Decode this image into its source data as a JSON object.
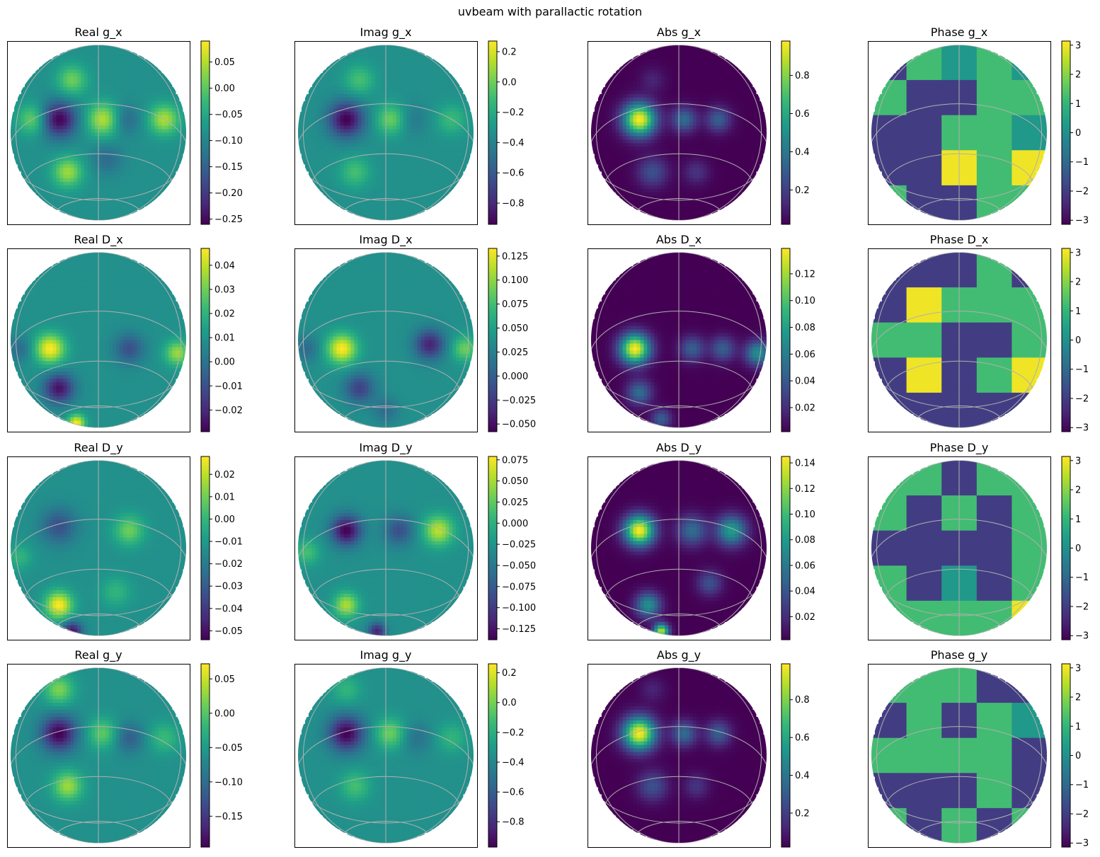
{
  "suptitle": "uvbeam with parallactic rotation",
  "colormap": "viridis",
  "colormap_stops": [
    "#440154",
    "#482878",
    "#3e4989",
    "#31688e",
    "#26828e",
    "#1f9e89",
    "#35b779",
    "#6ece58",
    "#b5de2b",
    "#fde725"
  ],
  "grid_color": "#b0b0b0",
  "chart_data": [
    {
      "type": "heatmap",
      "title": "Real g_x",
      "colorbar": {
        "range": [
          -0.26,
          0.09
        ],
        "ticks": [
          "0.05",
          "0.00",
          "−0.05",
          "−0.10",
          "−0.15",
          "−0.20",
          "−0.25"
        ],
        "tick_values": [
          0.05,
          0,
          -0.05,
          -0.1,
          -0.15,
          -0.2,
          -0.25
        ]
      }
    },
    {
      "type": "heatmap",
      "title": "Imag g_x",
      "colorbar": {
        "range": [
          -0.94,
          0.27
        ],
        "ticks": [
          "0.2",
          "0.0",
          "−0.2",
          "−0.4",
          "−0.6",
          "−0.8"
        ],
        "tick_values": [
          0.2,
          0,
          -0.2,
          -0.4,
          -0.6,
          -0.8
        ]
      }
    },
    {
      "type": "heatmap",
      "title": "Abs g_x",
      "colorbar": {
        "range": [
          0.02,
          0.98
        ],
        "ticks": [
          "0.8",
          "0.6",
          "0.4",
          "0.2"
        ],
        "tick_values": [
          0.8,
          0.6,
          0.4,
          0.2
        ]
      }
    },
    {
      "type": "heatmap",
      "title": "Phase g_x",
      "colorbar": {
        "range": [
          -3.14,
          3.14
        ],
        "ticks": [
          "3",
          "2",
          "1",
          "0",
          "−1",
          "−2",
          "−3"
        ],
        "tick_values": [
          3,
          2,
          1,
          0,
          -1,
          -2,
          -3
        ]
      }
    },
    {
      "type": "heatmap",
      "title": "Real D_x",
      "colorbar": {
        "range": [
          -0.029,
          0.047
        ],
        "ticks": [
          "0.04",
          "0.03",
          "0.02",
          "0.01",
          "0.00",
          "−0.01",
          "−0.02"
        ],
        "tick_values": [
          0.04,
          0.03,
          0.02,
          0.01,
          0,
          -0.01,
          -0.02
        ]
      }
    },
    {
      "type": "heatmap",
      "title": "Imag D_x",
      "colorbar": {
        "range": [
          -0.058,
          0.133
        ],
        "ticks": [
          "0.125",
          "0.100",
          "0.075",
          "0.050",
          "0.025",
          "0.000",
          "−0.025",
          "−0.050"
        ],
        "tick_values": [
          0.125,
          0.1,
          0.075,
          0.05,
          0.025,
          0,
          -0.025,
          -0.05
        ]
      }
    },
    {
      "type": "heatmap",
      "title": "Abs D_x",
      "colorbar": {
        "range": [
          0.002,
          0.139
        ],
        "ticks": [
          "0.12",
          "0.10",
          "0.08",
          "0.06",
          "0.04",
          "0.02"
        ],
        "tick_values": [
          0.12,
          0.1,
          0.08,
          0.06,
          0.04,
          0.02
        ]
      }
    },
    {
      "type": "heatmap",
      "title": "Phase D_x",
      "colorbar": {
        "range": [
          -3.14,
          3.14
        ],
        "ticks": [
          "3",
          "2",
          "1",
          "0",
          "−1",
          "−2",
          "−3"
        ],
        "tick_values": [
          3,
          2,
          1,
          0,
          -1,
          -2,
          -3
        ]
      }
    },
    {
      "type": "heatmap",
      "title": "Real D_y",
      "colorbar": {
        "range": [
          -0.054,
          0.028
        ],
        "ticks": [
          "0.02",
          "0.01",
          "0.00",
          "−0.01",
          "−0.02",
          "−0.03",
          "−0.04",
          "−0.05"
        ],
        "tick_values": [
          0.02,
          0.01,
          0,
          -0.01,
          -0.02,
          -0.03,
          -0.04,
          -0.05
        ]
      }
    },
    {
      "type": "heatmap",
      "title": "Imag D_y",
      "colorbar": {
        "range": [
          -0.138,
          0.079
        ],
        "ticks": [
          "0.075",
          "0.050",
          "0.025",
          "0.000",
          "−0.025",
          "−0.050",
          "−0.075",
          "−0.100",
          "−0.125"
        ],
        "tick_values": [
          0.075,
          0.05,
          0.025,
          0,
          -0.025,
          -0.05,
          -0.075,
          -0.1,
          -0.125
        ]
      }
    },
    {
      "type": "heatmap",
      "title": "Abs D_y",
      "colorbar": {
        "range": [
          0.002,
          0.145
        ],
        "ticks": [
          "0.14",
          "0.12",
          "0.10",
          "0.08",
          "0.06",
          "0.04",
          "0.02"
        ],
        "tick_values": [
          0.14,
          0.12,
          0.1,
          0.08,
          0.06,
          0.04,
          0.02
        ]
      }
    },
    {
      "type": "heatmap",
      "title": "Phase D_y",
      "colorbar": {
        "range": [
          -3.14,
          3.14
        ],
        "ticks": [
          "3",
          "2",
          "1",
          "0",
          "−1",
          "−2",
          "−3"
        ],
        "tick_values": [
          3,
          2,
          1,
          0,
          -1,
          -2,
          -3
        ]
      }
    },
    {
      "type": "heatmap",
      "title": "Real g_y",
      "colorbar": {
        "range": [
          -0.195,
          0.072
        ],
        "ticks": [
          "0.05",
          "0.00",
          "−0.05",
          "−0.10",
          "−0.15"
        ],
        "tick_values": [
          0.05,
          0,
          -0.05,
          -0.1,
          -0.15
        ]
      }
    },
    {
      "type": "heatmap",
      "title": "Imag g_y",
      "colorbar": {
        "range": [
          -0.97,
          0.26
        ],
        "ticks": [
          "0.2",
          "0.0",
          "−0.2",
          "−0.4",
          "−0.6",
          "−0.8"
        ],
        "tick_values": [
          0.2,
          0,
          -0.2,
          -0.4,
          -0.6,
          -0.8
        ]
      }
    },
    {
      "type": "heatmap",
      "title": "Abs g_y",
      "colorbar": {
        "range": [
          0.02,
          0.99
        ],
        "ticks": [
          "0.8",
          "0.6",
          "0.4",
          "0.2"
        ],
        "tick_values": [
          0.8,
          0.6,
          0.4,
          0.2
        ]
      }
    },
    {
      "type": "heatmap",
      "title": "Phase g_y",
      "colorbar": {
        "range": [
          -3.14,
          3.14
        ],
        "ticks": [
          "3",
          "2",
          "1",
          "0",
          "−1",
          "−2",
          "−3"
        ],
        "tick_values": [
          3,
          2,
          1,
          0,
          -1,
          -2,
          -3
        ]
      }
    }
  ]
}
